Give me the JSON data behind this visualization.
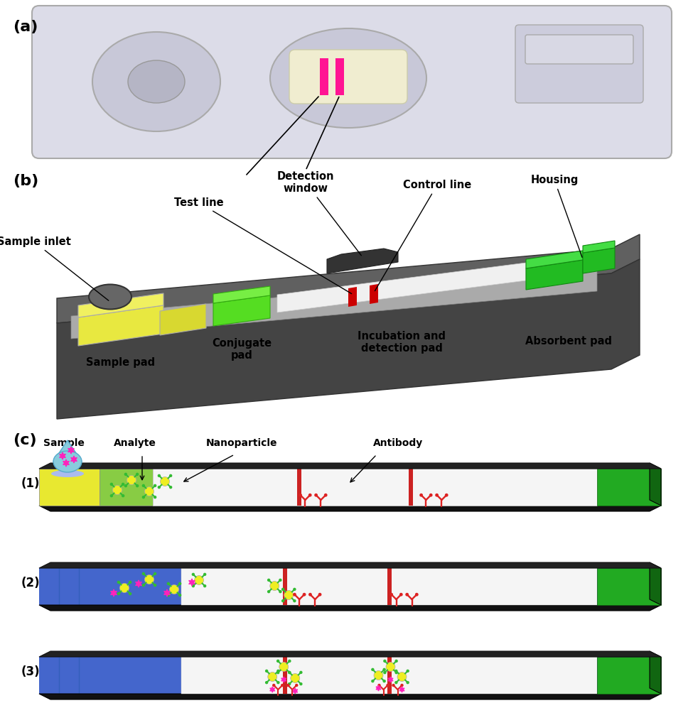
{
  "panel_a": {
    "label": "(a)",
    "device_color": "#dcdce8",
    "oval_color": "#c8c8d8",
    "window_color": "#f0edd0",
    "stripe_color": "#ff1493"
  },
  "panel_b": {
    "label": "(b)",
    "housing_top_color": "#606060",
    "housing_bot_color": "#444444",
    "interior_color": "#aaaaaa",
    "membrane_color": "#f0f0f0",
    "sample_pad_color": "#e8e840",
    "sample_pad_top_color": "#f0f060",
    "conj_pad_color": "#55dd22",
    "conj_pad_top_color": "#77ee44",
    "red_line_color": "#cc0000",
    "abs_color": "#22bb22",
    "abs_top_color": "#44dd44",
    "arch_color": "#333333",
    "inlet_color": "#666666"
  },
  "panel_c": {
    "label": "(c)",
    "blue_color": "#4466cc",
    "dark_color": "#111111",
    "abs_green": "#22aa22",
    "abs_green_dark": "#116611",
    "np_color": "#eeee22",
    "ab_color": "#33bb33",
    "red_ab": "#dd2222",
    "magenta": "#ff22bb",
    "drop_color": "#88ccdd",
    "drop_edge": "#55aacc",
    "yellow_pad": "#e8e830",
    "green_cj": "#88cc44",
    "membrane_white": "#f5f5f5",
    "membrane_red": "#cc2222"
  },
  "background": "#ffffff",
  "font_size_label": 16,
  "font_size_text": 10.5,
  "font_weight": "bold"
}
